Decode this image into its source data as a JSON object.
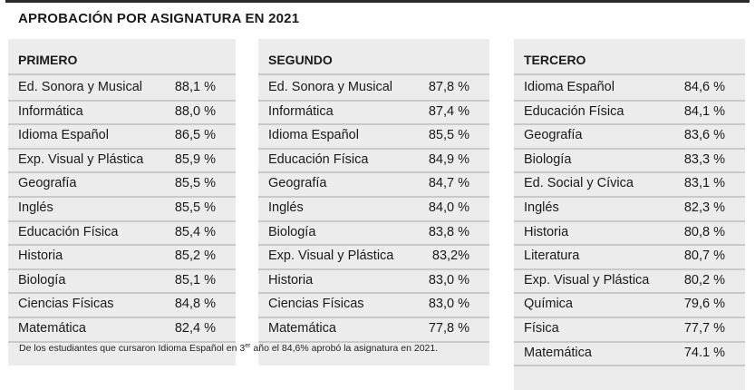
{
  "title": "APROBACIÓN POR ASIGNATURA EN 2021",
  "panels": [
    {
      "heading": "PRIMERO",
      "rows": [
        {
          "subject": "Ed. Sonora y Musical",
          "value": "88,1 %"
        },
        {
          "subject": "Informática",
          "value": "88,0 %"
        },
        {
          "subject": "Idioma Español",
          "value": "86,5 %"
        },
        {
          "subject": "Exp. Visual y Plástica",
          "value": "85,9 %"
        },
        {
          "subject": "Geografía",
          "value": "85,5 %"
        },
        {
          "subject": "Inglés",
          "value": "85,5 %"
        },
        {
          "subject": "Educación Física",
          "value": "85,4 %"
        },
        {
          "subject": "Historia",
          "value": "85,2 %"
        },
        {
          "subject": "Biología",
          "value": "85,1 %"
        },
        {
          "subject": "Ciencias Físicas",
          "value": "84,8 %"
        },
        {
          "subject": "Matemática",
          "value": "82,4 %"
        }
      ]
    },
    {
      "heading": "SEGUNDO",
      "rows": [
        {
          "subject": "Ed. Sonora y Musical",
          "value": "87,8 %"
        },
        {
          "subject": "Informática",
          "value": "87,4 %"
        },
        {
          "subject": "Idioma Español",
          "value": "85,5 %"
        },
        {
          "subject": "Educación Física",
          "value": "84,9 %"
        },
        {
          "subject": "Geografía",
          "value": "84,7 %"
        },
        {
          "subject": "Inglés",
          "value": "84,0 %"
        },
        {
          "subject": "Biología",
          "value": "83,8 %"
        },
        {
          "subject": "Exp. Visual y Plástica",
          "value": "83,2%"
        },
        {
          "subject": "Historia",
          "value": "83,0 %"
        },
        {
          "subject": "Ciencias Físicas",
          "value": "83,0 %"
        },
        {
          "subject": "Matemática",
          "value": "77,8 %"
        }
      ]
    },
    {
      "heading": "TERCERO",
      "rows": [
        {
          "subject": "Idioma Español",
          "value": "84,6 %"
        },
        {
          "subject": "Educación Física",
          "value": "84,1 %"
        },
        {
          "subject": "Geografía",
          "value": "83,6 %"
        },
        {
          "subject": "Biología",
          "value": "83,3 %"
        },
        {
          "subject": "Ed. Social y Cívica",
          "value": "83,1 %"
        },
        {
          "subject": "Inglés",
          "value": "82,3 %"
        },
        {
          "subject": "Historia",
          "value": "80,8 %"
        },
        {
          "subject": "Literatura",
          "value": "80,7 %"
        },
        {
          "subject": "Exp. Visual y Plástica",
          "value": "80,2 %"
        },
        {
          "subject": "Química",
          "value": "79,6 %"
        },
        {
          "subject": "Física",
          "value": "77,7 %"
        },
        {
          "subject": "Matemática",
          "value": "74.1 %"
        }
      ]
    }
  ],
  "note": {
    "before": "De los estudiantes que cursaron Idioma Español en 3",
    "sup": "er",
    "after": " año el 84,6% aprobó la asignatura en 2021."
  }
}
